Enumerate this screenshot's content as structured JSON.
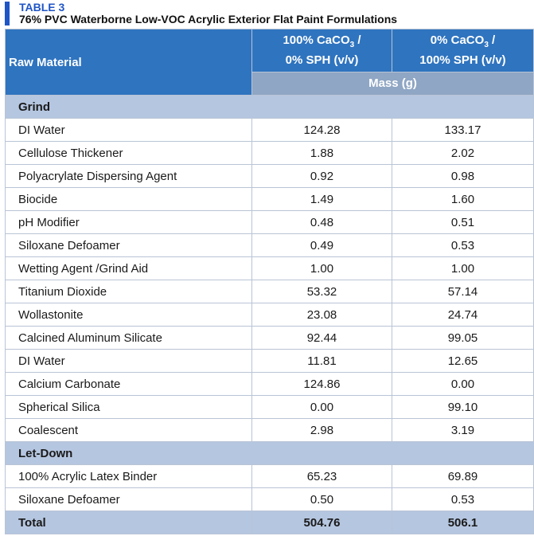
{
  "table_label": "TABLE 3",
  "table_title": "76% PVC Waterborne Low-VOC Acrylic Exterior Flat Paint Formulations",
  "header": {
    "raw_material": "Raw Material",
    "col1_line1": "100% CaCO",
    "col1_sub": "3",
    "col1_line1_end": " /",
    "col1_line2": "0% SPH (v/v)",
    "col2_line1": "0% CaCO",
    "col2_sub": "3",
    "col2_line1_end": " /",
    "col2_line2": "100% SPH (v/v)",
    "mass": "Mass (g)"
  },
  "sections": [
    {
      "name": "Grind",
      "rows": [
        {
          "material": "DI Water",
          "a": "124.28",
          "b": "133.17"
        },
        {
          "material": "Cellulose Thickener",
          "a": "1.88",
          "b": "2.02"
        },
        {
          "material": "Polyacrylate Dispersing Agent",
          "a": "0.92",
          "b": "0.98"
        },
        {
          "material": "Biocide",
          "a": "1.49",
          "b": "1.60"
        },
        {
          "material": "pH Modifier",
          "a": "0.48",
          "b": "0.51"
        },
        {
          "material": "Siloxane Defoamer",
          "a": "0.49",
          "b": "0.53"
        },
        {
          "material": "Wetting Agent /Grind Aid",
          "a": "1.00",
          "b": "1.00"
        },
        {
          "material": "Titanium Dioxide",
          "a": "53.32",
          "b": "57.14"
        },
        {
          "material": "Wollastonite",
          "a": "23.08",
          "b": "24.74"
        },
        {
          "material": "Calcined Aluminum Silicate",
          "a": "92.44",
          "b": "99.05"
        },
        {
          "material": "DI Water",
          "a": "11.81",
          "b": "12.65"
        },
        {
          "material": "Calcium Carbonate",
          "a": "124.86",
          "b": "0.00"
        },
        {
          "material": "Spherical Silica",
          "a": "0.00",
          "b": "99.10"
        },
        {
          "material": "Coalescent",
          "a": "2.98",
          "b": "3.19"
        }
      ]
    },
    {
      "name": "Let-Down",
      "rows": [
        {
          "material": "100% Acrylic Latex Binder",
          "a": "65.23",
          "b": "69.89"
        },
        {
          "material": "Siloxane Defoamer",
          "a": "0.50",
          "b": "0.53"
        }
      ]
    }
  ],
  "total": {
    "label": "Total",
    "a": "504.76",
    "b": "506.1"
  }
}
